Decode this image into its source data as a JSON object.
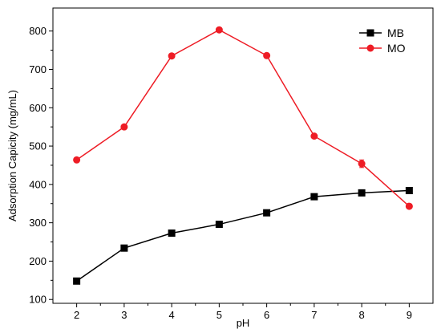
{
  "chart_data": {
    "type": "line",
    "title": "",
    "xlabel": "pH",
    "ylabel": "Adsorption Capicity (mg/mL)",
    "xlim": [
      1.5,
      9.5
    ],
    "ylim": [
      90,
      860
    ],
    "x_ticks": [
      2,
      3,
      4,
      5,
      6,
      7,
      8,
      9
    ],
    "y_ticks": [
      100,
      200,
      300,
      400,
      500,
      600,
      700,
      800
    ],
    "grid": false,
    "legend_position": "top-right",
    "series": [
      {
        "name": "MB",
        "color": "#000000",
        "marker": "square",
        "x": [
          2,
          3,
          4,
          5,
          6,
          7,
          8,
          9
        ],
        "y": [
          148,
          234,
          273,
          296,
          326,
          368,
          378,
          384
        ]
      },
      {
        "name": "MO",
        "color": "#ee1c25",
        "marker": "circle",
        "x": [
          2,
          3,
          4,
          5,
          6,
          7,
          8,
          9
        ],
        "y": [
          464,
          550,
          735,
          803,
          736,
          526,
          454,
          343
        ],
        "error": [
          0,
          0,
          0,
          0,
          0,
          0,
          10,
          0
        ]
      }
    ]
  }
}
